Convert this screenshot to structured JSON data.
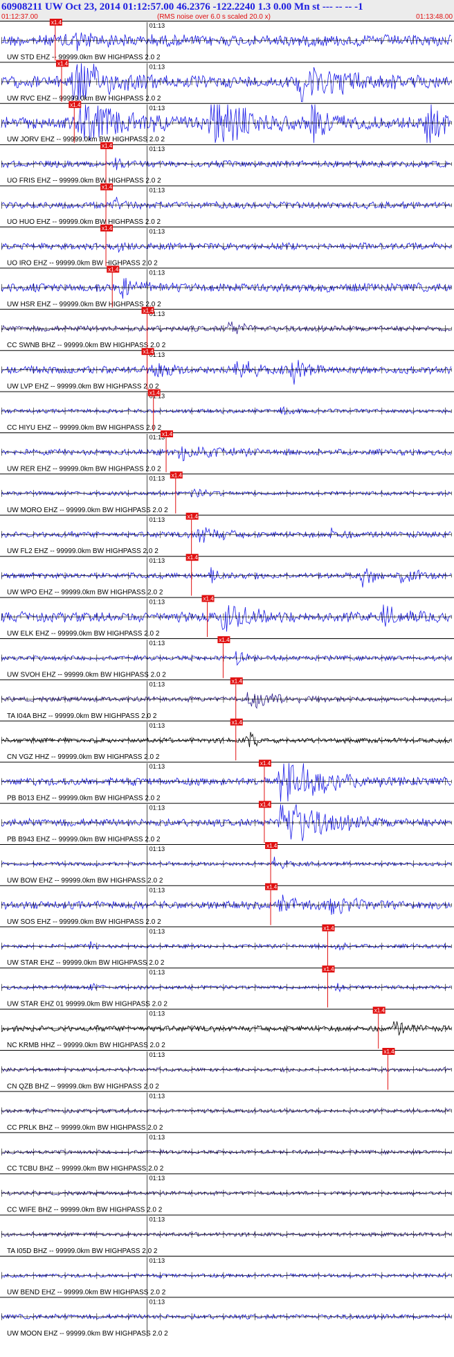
{
  "header": {
    "title": "60908211 UW Oct 23, 2014 01:12:57.00   46.2376 -122.2240  1.3 0.00 Mn st --- -- --  -1",
    "start_time": "01:12:37.00",
    "note": "(RMS noise over 6.0 s scaled 20.0 x)",
    "end_time": "01:13:48.00",
    "title_color": "#1d1de0",
    "accent_color": "#e01010"
  },
  "chart_data": {
    "type": "line",
    "title": "60908211 UW Oct 23, 2014 01:12:57.00   46.2376 -122.2240  1.3 0.00 Mn st --- -- --  -1",
    "x_start": "01:12:37.00",
    "x_end": "01:13:48.00",
    "x_range_seconds": [
      0,
      71
    ],
    "minute_marker_label": "01:13",
    "minute_marker_second": 23,
    "pick_label": "x1.4",
    "grid": false,
    "series": [
      {
        "name": "UW STD EHZ -- 99999.0km BW  HIGHPASS  2.0  2",
        "color": "#1a1ae6",
        "amp": 0.6,
        "pick_s": 8.5,
        "events": [
          [
            10,
            0.9,
            8
          ]
        ]
      },
      {
        "name": "UW RVC EHZ -- 99999.0km BW  HIGHPASS  2.0  2",
        "color": "#1a1ae6",
        "amp": 0.6,
        "pick_s": 9.5,
        "events": [
          [
            11,
            2.6,
            10
          ],
          [
            47,
            2.4,
            12
          ]
        ]
      },
      {
        "name": "UW JORV EHZ -- 99999.0km BW  HIGHPASS  2.0  2",
        "color": "#1a1ae6",
        "amp": 0.6,
        "pick_s": 11.5,
        "events": [
          [
            12,
            2.2,
            14
          ],
          [
            33,
            3.0,
            10
          ],
          [
            49,
            1.6,
            6
          ],
          [
            67,
            2.0,
            5
          ]
        ]
      },
      {
        "name": "UO FRIS EHZ -- 99999.0km BW  HIGHPASS  2.0  2",
        "color": "#1a1ae6",
        "amp": 0.35,
        "pick_s": 16.5,
        "events": [
          [
            18,
            0.6,
            2
          ]
        ]
      },
      {
        "name": "UO HUO EHZ -- 99999.0km BW  HIGHPASS  2.0  2",
        "color": "#1a1ae6",
        "amp": 0.35,
        "pick_s": 16.5,
        "events": [
          [
            18,
            0.7,
            2
          ]
        ]
      },
      {
        "name": "UO IRO EHZ -- 99999.0km BW  HIGHPASS  2.0  2",
        "color": "#1a1ae6",
        "amp": 0.35,
        "pick_s": 16.5,
        "events": [
          [
            18,
            0.7,
            2
          ]
        ]
      },
      {
        "name": "UW HSR EHZ -- 99999.0km BW  HIGHPASS  2.0  2",
        "color": "#1a1ae6",
        "amp": 0.45,
        "pick_s": 17.5,
        "events": [
          [
            19,
            0.9,
            4
          ]
        ]
      },
      {
        "name": "CC SWNB BHZ -- 99999.0km BW  HIGHPASS  2.0  2",
        "color": "#2a1a8a",
        "amp": 0.3,
        "pick_s": 23.0,
        "events": [
          [
            36,
            0.9,
            4
          ]
        ]
      },
      {
        "name": "UW LVP EHZ -- 99999.0km BW  HIGHPASS  2.0  2",
        "color": "#1a1ae6",
        "amp": 0.4,
        "pick_s": 23.0,
        "events": [
          [
            24,
            1.2,
            4
          ],
          [
            37,
            1.3,
            4
          ],
          [
            46,
            1.6,
            3
          ]
        ]
      },
      {
        "name": "CC HIYU EHZ -- 99999.0km BW  HIGHPASS  2.0  2",
        "color": "#1a1ae6",
        "amp": 0.2,
        "pick_s": 24.0,
        "events": [
          [
            44,
            0.5,
            3
          ]
        ]
      },
      {
        "name": "UW RER EHZ -- 99999.0km BW  HIGHPASS  2.0  2",
        "color": "#1a1ae6",
        "amp": 0.3,
        "pick_s": 26.0,
        "events": [
          [
            28,
            0.8,
            12
          ]
        ]
      },
      {
        "name": "UW MORO EHZ -- 99999.0km BW  HIGHPASS  2.0  2",
        "color": "#1a1ae6",
        "amp": 0.2,
        "pick_s": 27.5,
        "events": [
          [
            30,
            0.4,
            6
          ]
        ]
      },
      {
        "name": "UW FL2 EHZ -- 99999.0km BW  HIGHPASS  2.0  2",
        "color": "#1a1ae6",
        "amp": 0.3,
        "pick_s": 30.0,
        "events": [
          [
            31,
            1.0,
            6
          ],
          [
            52,
            0.6,
            3
          ]
        ]
      },
      {
        "name": "UW WPO EHZ -- 99999.0km BW  HIGHPASS  2.0  2",
        "color": "#1a1ae6",
        "amp": 0.3,
        "pick_s": 30.0,
        "events": [
          [
            33,
            0.6,
            5
          ],
          [
            57,
            1.3,
            3
          ],
          [
            63,
            0.8,
            5
          ]
        ]
      },
      {
        "name": "UW ELK EHZ -- 99999.0km BW  HIGHPASS  2.0  2",
        "color": "#1a1ae6",
        "amp": 0.5,
        "pick_s": 32.5,
        "events": [
          [
            35,
            1.3,
            8
          ],
          [
            60,
            0.9,
            6
          ]
        ]
      },
      {
        "name": "UW SVOH EHZ -- 99999.0km BW  HIGHPASS  2.0  2",
        "color": "#1a1ae6",
        "amp": 0.25,
        "pick_s": 35.0,
        "events": [
          [
            37,
            0.7,
            3
          ]
        ]
      },
      {
        "name": "TA I04A BHZ -- 99999.0km BW  HIGHPASS  2.0  2",
        "color": "#2a1a8a",
        "amp": 0.25,
        "pick_s": 37.0,
        "events": [
          [
            39,
            0.9,
            10
          ]
        ]
      },
      {
        "name": "CN VGZ HHZ -- 99999.0km BW  HIGHPASS  2.0  2",
        "color": "#000000",
        "amp": 0.25,
        "pick_s": 37.0,
        "events": [
          [
            39,
            1.4,
            2
          ]
        ]
      },
      {
        "name": "PB B013 EHZ -- 99999.0km BW  HIGHPASS  2.0  2",
        "color": "#1a1ae6",
        "amp": 0.4,
        "pick_s": 41.5,
        "events": [
          [
            44,
            3.0,
            12
          ]
        ]
      },
      {
        "name": "PB B943 EHZ -- 99999.0km BW  HIGHPASS  2.0  2",
        "color": "#1a1ae6",
        "amp": 0.4,
        "pick_s": 41.5,
        "events": [
          [
            44,
            3.0,
            12
          ]
        ]
      },
      {
        "name": "UW BOW EHZ -- 99999.0km BW  HIGHPASS  2.0  2",
        "color": "#1a1ae6",
        "amp": 0.2,
        "pick_s": 42.5,
        "events": [
          [
            43,
            0.5,
            4
          ]
        ]
      },
      {
        "name": "UW SOS EHZ -- 99999.0km BW  HIGHPASS  2.0  2",
        "color": "#1a1ae6",
        "amp": 0.4,
        "pick_s": 42.5,
        "events": [
          [
            44,
            0.7,
            8
          ],
          [
            52,
            0.9,
            6
          ]
        ]
      },
      {
        "name": "UW STAR EHZ -- 99999.0km BW  HIGHPASS  2.0  2",
        "color": "#1a1ae6",
        "amp": 0.2,
        "pick_s": 51.5,
        "events": [
          [
            14,
            0.4,
            2
          ],
          [
            53,
            0.5,
            2
          ]
        ]
      },
      {
        "name": "UW STAR EHZ 01 99999.0km BW  HIGHPASS  2.0  2",
        "color": "#1a1ae6",
        "amp": 0.2,
        "pick_s": 51.5,
        "events": [
          [
            14,
            0.4,
            2
          ],
          [
            53,
            0.5,
            2
          ]
        ]
      },
      {
        "name": "NC KRMB HHZ -- 99999.0km BW  HIGHPASS  2.0  2",
        "color": "#000000",
        "amp": 0.3,
        "pick_s": 59.5,
        "events": [
          [
            62,
            0.7,
            4
          ]
        ]
      },
      {
        "name": "CN QZB BHZ -- 99999.0km BW  HIGHPASS  2.0  2",
        "color": "#2a1a8a",
        "amp": 0.2,
        "pick_s": 61.0,
        "events": []
      },
      {
        "name": "CC PRLK BHZ -- 99999.0km BW  HIGHPASS  2.0  2",
        "color": "#2a1a8a",
        "amp": 0.2,
        "pick_s": null,
        "events": []
      },
      {
        "name": "CC TCBU BHZ -- 99999.0km BW  HIGHPASS  2.0  2",
        "color": "#2a1a8a",
        "amp": 0.2,
        "pick_s": null,
        "events": []
      },
      {
        "name": "CC WIFE BHZ -- 99999.0km BW  HIGHPASS  2.0  2",
        "color": "#2a1a8a",
        "amp": 0.2,
        "pick_s": null,
        "events": []
      },
      {
        "name": "TA I05D BHZ -- 99999.0km BW  HIGHPASS  2.0  2",
        "color": "#2a1a8a",
        "amp": 0.2,
        "pick_s": null,
        "events": []
      },
      {
        "name": "UW BEND EHZ -- 99999.0km BW  HIGHPASS  2.0  2",
        "color": "#1a1ae6",
        "amp": 0.2,
        "pick_s": null,
        "events": []
      },
      {
        "name": "UW MOON EHZ -- 99999.0km BW  HIGHPASS  2.0  2",
        "color": "#1a1ae6",
        "amp": 0.25,
        "pick_s": null,
        "events": []
      }
    ]
  }
}
